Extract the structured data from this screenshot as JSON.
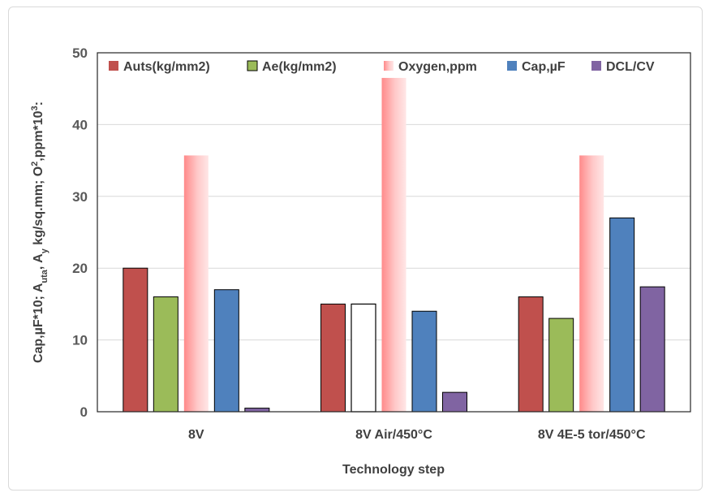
{
  "chart_data": {
    "type": "bar",
    "title": "",
    "xlabel": "Technology step",
    "ylabel_parts": [
      "Cap,µF*10; A",
      "uta",
      ", A",
      "y",
      " kg/sq.mm; O",
      "2",
      ",ppm*10",
      "3",
      ":"
    ],
    "ylim": [
      0,
      50
    ],
    "yticks": [
      0,
      10,
      20,
      30,
      40,
      50
    ],
    "grid": true,
    "legend_position": "top",
    "categories": [
      "8V",
      "8V Air/450°C",
      "8V 4E-5 tor/450°C"
    ],
    "series": [
      {
        "name": "Auts(kg/mm2)",
        "color": "#c0504d",
        "values": [
          20,
          15,
          16
        ]
      },
      {
        "name": "Ae(kg/mm2)",
        "color": "#9bbb59",
        "values": [
          16,
          15,
          13
        ],
        "hollow_categories": [
          1
        ]
      },
      {
        "name": "Oxygen,ppm",
        "color": "#f8a5a5",
        "values": [
          35.7,
          46.5,
          35.7
        ]
      },
      {
        "name": "Cap,µF",
        "color": "#4f81bd",
        "values": [
          17,
          14,
          27
        ]
      },
      {
        "name": "DCL/CV",
        "color": "#8064a2",
        "values": [
          0.5,
          2.7,
          17.4
        ]
      }
    ]
  }
}
